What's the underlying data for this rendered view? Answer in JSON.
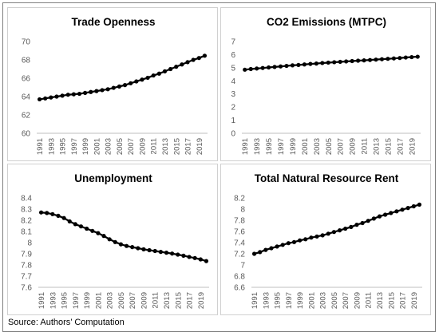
{
  "source": "Source: Authors’ Computation",
  "x_tick_labels": [
    "1991",
    "1993",
    "1995",
    "1997",
    "1999",
    "2001",
    "2003",
    "2005",
    "2007",
    "2009",
    "2011",
    "2013",
    "2015",
    "2017",
    "2019"
  ],
  "colors": {
    "line": "#000000",
    "marker": "#000000",
    "axis": "#bfbfbf",
    "text": "#595959"
  },
  "chart_data": [
    {
      "type": "line",
      "title": "Trade Openness",
      "xlabel": "",
      "ylabel": "",
      "x": [
        1991,
        1992,
        1993,
        1994,
        1995,
        1996,
        1997,
        1998,
        1999,
        2000,
        2001,
        2002,
        2003,
        2004,
        2005,
        2006,
        2007,
        2008,
        2009,
        2010,
        2011,
        2012,
        2013,
        2014,
        2015,
        2016,
        2017,
        2018,
        2019,
        2020
      ],
      "values": [
        63.7,
        63.8,
        63.9,
        64.0,
        64.1,
        64.2,
        64.25,
        64.3,
        64.4,
        64.5,
        64.6,
        64.7,
        64.8,
        64.95,
        65.1,
        65.25,
        65.45,
        65.65,
        65.85,
        66.05,
        66.3,
        66.5,
        66.75,
        67.0,
        67.25,
        67.5,
        67.75,
        68.0,
        68.2,
        68.45
      ],
      "ylim": [
        60,
        70
      ],
      "yticks": [
        60,
        62,
        64,
        66,
        68,
        70
      ],
      "grid": false,
      "legend": "none"
    },
    {
      "type": "line",
      "title": "CO2 Emissions (MTPC)",
      "xlabel": "",
      "ylabel": "",
      "x": [
        1991,
        1992,
        1993,
        1994,
        1995,
        1996,
        1997,
        1998,
        1999,
        2000,
        2001,
        2002,
        2003,
        2004,
        2005,
        2006,
        2007,
        2008,
        2009,
        2010,
        2011,
        2012,
        2013,
        2014,
        2015,
        2016,
        2017,
        2018,
        2019,
        2020
      ],
      "values": [
        4.85,
        4.9,
        4.94,
        4.98,
        5.02,
        5.06,
        5.1,
        5.14,
        5.18,
        5.21,
        5.25,
        5.29,
        5.32,
        5.36,
        5.39,
        5.42,
        5.45,
        5.48,
        5.51,
        5.54,
        5.56,
        5.59,
        5.62,
        5.65,
        5.68,
        5.71,
        5.74,
        5.78,
        5.81,
        5.84
      ],
      "ylim": [
        0,
        7
      ],
      "yticks": [
        0,
        1,
        2,
        3,
        4,
        5,
        6,
        7
      ],
      "grid": false,
      "legend": "none"
    },
    {
      "type": "line",
      "title": "Unemployment",
      "xlabel": "",
      "ylabel": "",
      "x": [
        1991,
        1992,
        1993,
        1994,
        1995,
        1996,
        1997,
        1998,
        1999,
        2000,
        2001,
        2002,
        2003,
        2004,
        2005,
        2006,
        2007,
        2008,
        2009,
        2010,
        2011,
        2012,
        2013,
        2014,
        2015,
        2016,
        2017,
        2018,
        2019,
        2020
      ],
      "values": [
        8.27,
        8.265,
        8.255,
        8.24,
        8.22,
        8.19,
        8.165,
        8.145,
        8.125,
        8.105,
        8.085,
        8.06,
        8.03,
        8.005,
        7.985,
        7.97,
        7.96,
        7.95,
        7.94,
        7.932,
        7.925,
        7.917,
        7.91,
        7.902,
        7.893,
        7.883,
        7.872,
        7.862,
        7.85,
        7.835
      ],
      "ylim": [
        7.6,
        8.4
      ],
      "yticks": [
        7.6,
        7.7,
        7.8,
        7.9,
        8,
        8.1,
        8.2,
        8.3,
        8.4
      ],
      "grid": false,
      "legend": "none"
    },
    {
      "type": "line",
      "title": "Total Natural Resource Rent",
      "xlabel": "",
      "ylabel": "",
      "x": [
        1991,
        1992,
        1993,
        1994,
        1995,
        1996,
        1997,
        1998,
        1999,
        2000,
        2001,
        2002,
        2003,
        2004,
        2005,
        2006,
        2007,
        2008,
        2009,
        2010,
        2011,
        2012,
        2013,
        2014,
        2015,
        2016,
        2017,
        2018,
        2019,
        2020
      ],
      "values": [
        7.2,
        7.23,
        7.27,
        7.3,
        7.33,
        7.36,
        7.39,
        7.41,
        7.44,
        7.46,
        7.49,
        7.51,
        7.53,
        7.56,
        7.59,
        7.62,
        7.65,
        7.68,
        7.72,
        7.75,
        7.79,
        7.83,
        7.87,
        7.9,
        7.93,
        7.96,
        7.99,
        8.02,
        8.05,
        8.08
      ],
      "ylim": [
        6.6,
        8.2
      ],
      "yticks": [
        6.6,
        6.8,
        7,
        7.2,
        7.4,
        7.6,
        7.8,
        8,
        8.2
      ],
      "grid": false,
      "legend": "none"
    }
  ]
}
